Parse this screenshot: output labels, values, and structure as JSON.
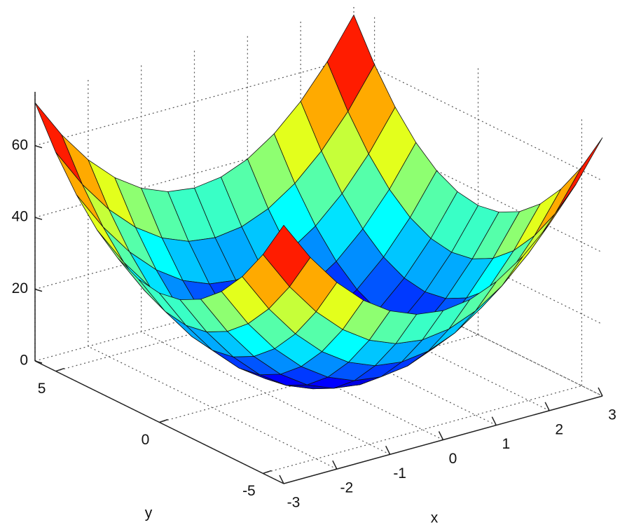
{
  "chart_data": {
    "type": "surface",
    "x": [
      -3,
      -2.5,
      -2,
      -1.5,
      -1,
      -0.5,
      0,
      0.5,
      1,
      1.5,
      2,
      2.5,
      3
    ],
    "y": [
      -6,
      -5,
      -4,
      -3,
      -2,
      -1,
      0,
      1,
      2,
      3,
      4,
      5,
      6
    ],
    "z": [
      [
        72,
        61,
        52,
        45,
        40,
        37,
        36,
        37,
        40,
        45,
        52,
        61,
        72
      ],
      [
        61,
        50,
        41,
        34,
        29,
        26,
        25,
        26,
        29,
        34,
        41,
        50,
        61
      ],
      [
        52,
        41,
        32,
        25,
        20,
        17,
        16,
        17,
        20,
        25,
        32,
        41,
        52
      ],
      [
        45,
        34,
        25,
        18,
        13,
        10,
        9,
        10,
        13,
        18,
        25,
        34,
        45
      ],
      [
        40,
        29,
        20,
        13,
        8,
        5,
        4,
        5,
        8,
        13,
        20,
        29,
        40
      ],
      [
        37,
        26,
        17,
        10,
        5,
        2,
        1,
        2,
        5,
        10,
        17,
        26,
        37
      ],
      [
        36,
        25,
        16,
        9,
        4,
        1,
        0,
        1,
        4,
        9,
        16,
        25,
        36
      ],
      [
        37,
        26,
        17,
        10,
        5,
        2,
        1,
        2,
        5,
        10,
        17,
        26,
        37
      ],
      [
        40,
        29,
        20,
        13,
        8,
        5,
        4,
        5,
        8,
        13,
        20,
        29,
        40
      ],
      [
        45,
        34,
        25,
        18,
        13,
        10,
        9,
        10,
        13,
        18,
        25,
        34,
        45
      ],
      [
        52,
        41,
        32,
        25,
        20,
        17,
        16,
        17,
        20,
        25,
        32,
        41,
        52
      ],
      [
        61,
        50,
        41,
        34,
        29,
        26,
        25,
        26,
        29,
        34,
        41,
        50,
        61
      ],
      [
        72,
        61,
        52,
        45,
        40,
        37,
        36,
        37,
        40,
        45,
        52,
        61,
        72
      ]
    ],
    "xlim": [
      -3,
      3
    ],
    "ylim": [
      -6,
      6
    ],
    "zlim": [
      0,
      75
    ],
    "xticks": [
      -3,
      -2,
      -1,
      0,
      1,
      2,
      3
    ],
    "yticks": [
      -5,
      0,
      5
    ],
    "zticks": [
      0,
      20,
      40,
      60
    ],
    "xlabel": "x",
    "ylabel": "y",
    "colormap": "jet",
    "grid": true
  }
}
